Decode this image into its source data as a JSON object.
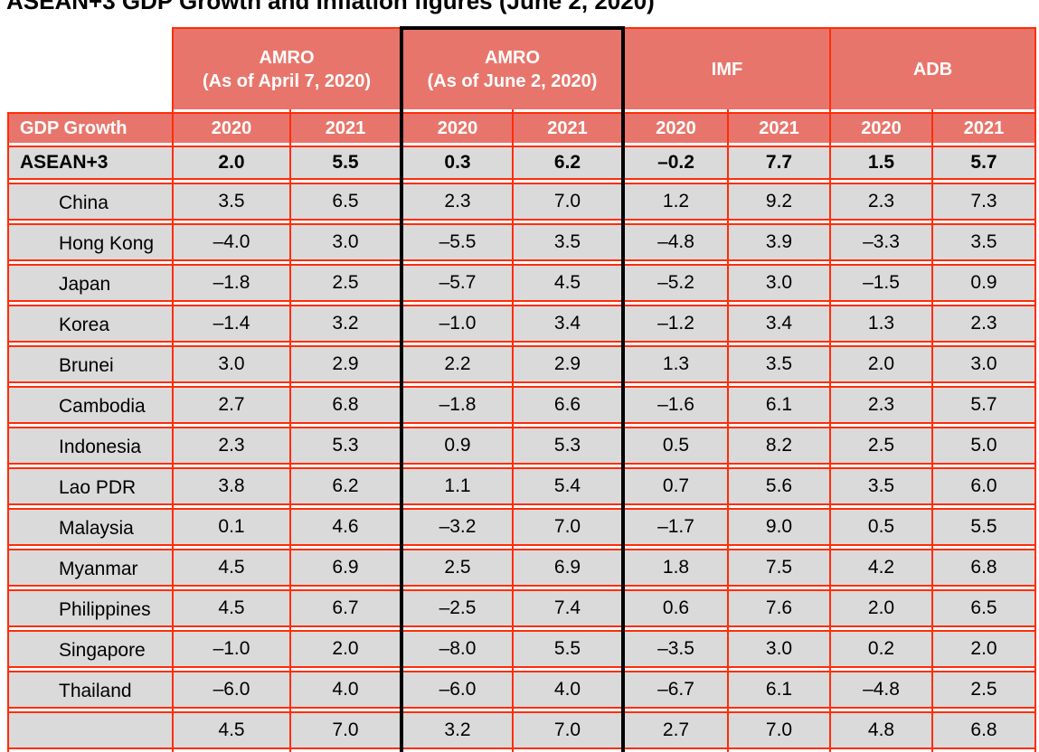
{
  "title": "ASEAN+3 GDP Growth and Inflation figures (June 2, 2020)",
  "colors": {
    "header_fill": "#e8756b",
    "grid_line": "#ff2d08",
    "row_fill": "#dadada",
    "highlight_frame": "#000000",
    "header_text": "#ffffff",
    "body_text": "#000000"
  },
  "table": {
    "groups": [
      {
        "name": "AMRO",
        "sub": "(As of April 7, 2020)"
      },
      {
        "name": "AMRO",
        "sub": "(As of June 2, 2020)"
      },
      {
        "name": "IMF",
        "sub": ""
      },
      {
        "name": "ADB",
        "sub": ""
      }
    ],
    "measure_label": "GDP Growth",
    "year_headers": [
      "2020",
      "2021",
      "2020",
      "2021",
      "2020",
      "2021",
      "2020",
      "2021"
    ],
    "summary_row": {
      "label": "ASEAN+3",
      "values": [
        "2.0",
        "5.5",
        "0.3",
        "6.2",
        "–0.2",
        "7.7",
        "1.5",
        "5.7"
      ]
    },
    "rows": [
      {
        "label": "China",
        "values": [
          "3.5",
          "6.5",
          "2.3",
          "7.0",
          "1.2",
          "9.2",
          "2.3",
          "7.3"
        ]
      },
      {
        "label": "Hong Kong",
        "values": [
          "–4.0",
          "3.0",
          "–5.5",
          "3.5",
          "–4.8",
          "3.9",
          "–3.3",
          "3.5"
        ]
      },
      {
        "label": "Japan",
        "values": [
          "–1.8",
          "2.5",
          "–5.7",
          "4.5",
          "–5.2",
          "3.0",
          "–1.5",
          "0.9"
        ]
      },
      {
        "label": "Korea",
        "values": [
          "–1.4",
          "3.2",
          "–1.0",
          "3.4",
          "–1.2",
          "3.4",
          "1.3",
          "2.3"
        ]
      },
      {
        "label": "Brunei",
        "values": [
          "3.0",
          "2.9",
          "2.2",
          "2.9",
          "1.3",
          "3.5",
          "2.0",
          "3.0"
        ]
      },
      {
        "label": "Cambodia",
        "values": [
          "2.7",
          "6.8",
          "–1.8",
          "6.6",
          "–1.6",
          "6.1",
          "2.3",
          "5.7"
        ]
      },
      {
        "label": "Indonesia",
        "values": [
          "2.3",
          "5.3",
          "0.9",
          "5.3",
          "0.5",
          "8.2",
          "2.5",
          "5.0"
        ]
      },
      {
        "label": "Lao PDR",
        "values": [
          "3.8",
          "6.2",
          "1.1",
          "5.4",
          "0.7",
          "5.6",
          "3.5",
          "6.0"
        ]
      },
      {
        "label": "Malaysia",
        "values": [
          "0.1",
          "4.6",
          "–3.2",
          "7.0",
          "–1.7",
          "9.0",
          "0.5",
          "5.5"
        ]
      },
      {
        "label": "Myanmar",
        "values": [
          "4.5",
          "6.9",
          "2.5",
          "6.9",
          "1.8",
          "7.5",
          "4.2",
          "6.8"
        ]
      },
      {
        "label": "Philippines",
        "values": [
          "4.5",
          "6.7",
          "–2.5",
          "7.4",
          "0.6",
          "7.6",
          "2.0",
          "6.5"
        ]
      },
      {
        "label": "Singapore",
        "values": [
          "–1.0",
          "2.0",
          "–8.0",
          "5.5",
          "–3.5",
          "3.0",
          "0.2",
          "2.0"
        ]
      },
      {
        "label": "Thailand",
        "values": [
          "–6.0",
          "4.0",
          "–6.0",
          "4.0",
          "–6.7",
          "6.1",
          "–4.8",
          "2.5"
        ]
      },
      {
        "label": "",
        "values": [
          "4.5",
          "7.0",
          "3.2",
          "7.0",
          "2.7",
          "7.0",
          "4.8",
          "6.8"
        ]
      }
    ]
  }
}
